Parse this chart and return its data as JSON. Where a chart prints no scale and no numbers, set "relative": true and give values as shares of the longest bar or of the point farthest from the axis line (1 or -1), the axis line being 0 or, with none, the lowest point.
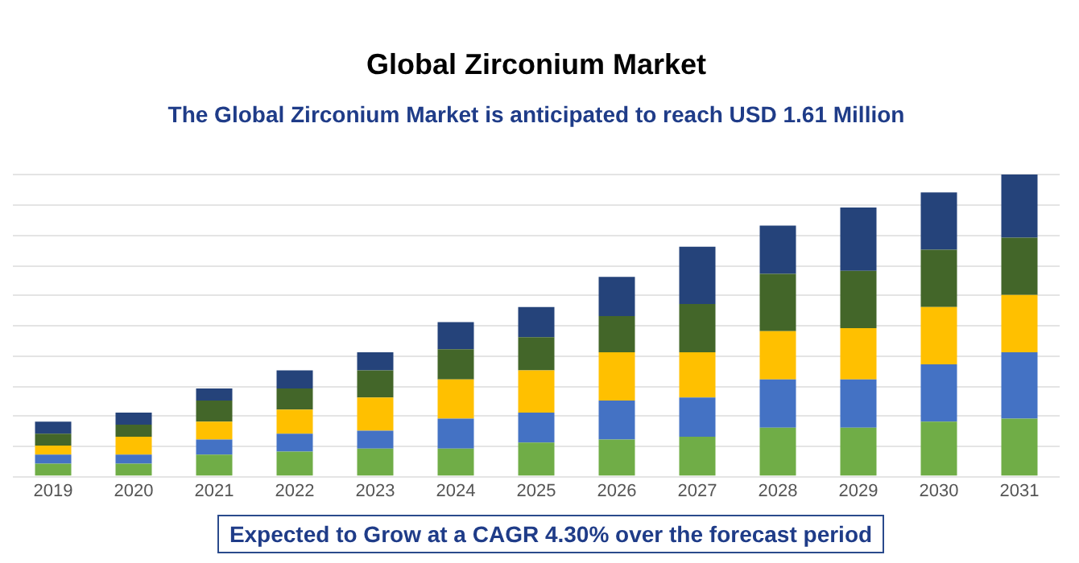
{
  "chart_data": {
    "type": "bar",
    "title": "Global Zirconium Market",
    "subtitle": "The Global Zirconium Market is anticipated to reach USD 1.61 Million",
    "annotations": [
      "Expected to Grow at a CAGR 4.30% over the forecast period"
    ],
    "stacked": true,
    "relative": true,
    "grid": "y",
    "legend": false,
    "categories": [
      "2019",
      "2020",
      "2021",
      "2022",
      "2023",
      "2024",
      "2025",
      "2026",
      "2027",
      "2028",
      "2029",
      "2030",
      "2031"
    ],
    "series": [
      {
        "color": "#70ad47",
        "values": [
          0.04,
          0.04,
          0.07,
          0.08,
          0.09,
          0.09,
          0.11,
          0.12,
          0.13,
          0.16,
          0.16,
          0.18,
          0.19
        ]
      },
      {
        "color": "#4472c4",
        "values": [
          0.03,
          0.03,
          0.05,
          0.06,
          0.06,
          0.1,
          0.1,
          0.13,
          0.13,
          0.16,
          0.16,
          0.19,
          0.22
        ]
      },
      {
        "color": "#ffc000",
        "values": [
          0.03,
          0.06,
          0.06,
          0.08,
          0.11,
          0.13,
          0.14,
          0.16,
          0.15,
          0.16,
          0.17,
          0.19,
          0.19
        ]
      },
      {
        "color": "#436629",
        "values": [
          0.04,
          0.04,
          0.07,
          0.07,
          0.09,
          0.1,
          0.11,
          0.12,
          0.16,
          0.19,
          0.19,
          0.19,
          0.19
        ]
      },
      {
        "color": "#25437a",
        "values": [
          0.04,
          0.04,
          0.04,
          0.06,
          0.06,
          0.09,
          0.1,
          0.13,
          0.19,
          0.16,
          0.21,
          0.19,
          0.21
        ]
      }
    ]
  }
}
